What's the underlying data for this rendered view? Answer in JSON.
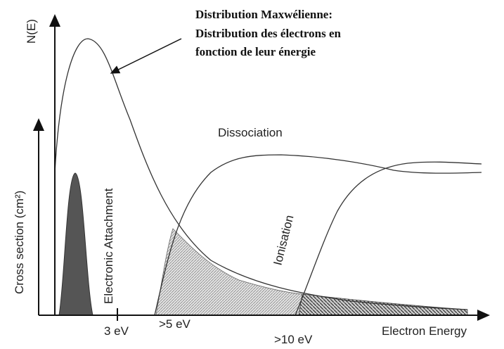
{
  "title_lines": [
    "Distribution Maxwélienne:",
    "Distribution des électrons en",
    "fonction de leur énergie"
  ],
  "y_axis_top": "N(E)",
  "y_axis_bottom": "Cross section (cm²)",
  "curve_labels": {
    "dissociation": "Dissociation",
    "attachment": "Electronic Attachment",
    "ionisation": "Ionisation"
  },
  "x_labels": [
    "3 eV",
    ">5 eV",
    ">10 eV"
  ],
  "x_axis": "Electron Energy"
}
